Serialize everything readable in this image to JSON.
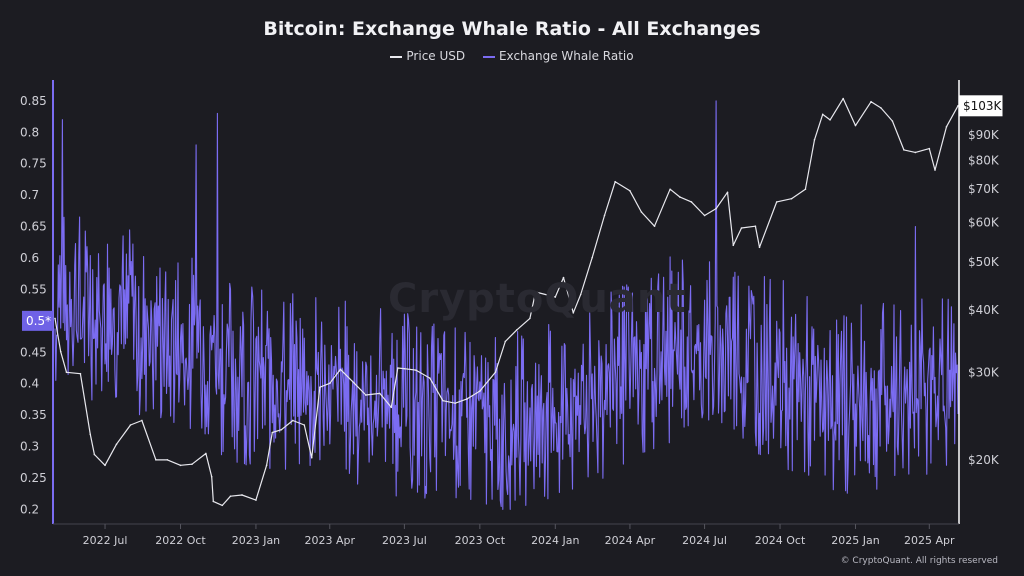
{
  "chart_data": {
    "type": "line",
    "title": "Bitcoin: Exchange Whale Ratio - All Exchanges",
    "legend_position": "top-center",
    "grid": false,
    "x_tick_labels": [
      "2022 Jul",
      "2022 Oct",
      "2023 Jan",
      "2023 Apr",
      "2023 Jul",
      "2023 Oct",
      "2024 Jan",
      "2024 Apr",
      "2024 Jul",
      "2024 Oct",
      "2025 Jan",
      "2025 Apr"
    ],
    "x_range": [
      "2022-05-01",
      "2025-05-06"
    ],
    "left_axis": {
      "ticks": [
        "0.85",
        "0.8",
        "0.75",
        "0.7",
        "0.65",
        "0.6",
        "0.55",
        "0.45",
        "0.4",
        "0.35",
        "0.3",
        "0.25",
        "0.2"
      ],
      "ylim": [
        0.18,
        0.88
      ],
      "current_marker": "0.5*",
      "current_value": 0.5
    },
    "right_axis": {
      "scale": "log",
      "ticks": [
        "$90K",
        "$80K",
        "$70K",
        "$60K",
        "$50K",
        "$40K",
        "$30K",
        "$20K"
      ],
      "tick_values": [
        90000,
        80000,
        70000,
        60000,
        50000,
        40000,
        30000,
        20000
      ],
      "ylim": [
        15000,
        115000
      ],
      "current_marker": "$103K",
      "current_value": 103000
    },
    "series": [
      {
        "name": "Price USD",
        "color": "#e8e8ee",
        "axis": "right",
        "x": [
          "2022-05-01",
          "2022-05-08",
          "2022-05-15",
          "2022-06-01",
          "2022-06-13",
          "2022-06-18",
          "2022-07-01",
          "2022-07-15",
          "2022-08-01",
          "2022-08-15",
          "2022-09-01",
          "2022-09-15",
          "2022-10-01",
          "2022-10-15",
          "2022-11-01",
          "2022-11-08",
          "2022-11-10",
          "2022-11-21",
          "2022-12-01",
          "2022-12-15",
          "2023-01-01",
          "2023-01-14",
          "2023-01-21",
          "2023-02-01",
          "2023-02-15",
          "2023-03-01",
          "2023-03-10",
          "2023-03-20",
          "2023-04-01",
          "2023-04-14",
          "2023-05-01",
          "2023-05-15",
          "2023-06-01",
          "2023-06-15",
          "2023-06-23",
          "2023-07-01",
          "2023-07-15",
          "2023-08-01",
          "2023-08-17",
          "2023-09-01",
          "2023-09-15",
          "2023-10-01",
          "2023-10-20",
          "2023-11-01",
          "2023-11-15",
          "2023-12-01",
          "2023-12-08",
          "2024-01-01",
          "2024-01-11",
          "2024-01-23",
          "2024-02-01",
          "2024-02-15",
          "2024-03-01",
          "2024-03-14",
          "2024-04-01",
          "2024-04-15",
          "2024-05-01",
          "2024-05-20",
          "2024-06-01",
          "2024-06-15",
          "2024-07-01",
          "2024-07-15",
          "2024-07-29",
          "2024-08-05",
          "2024-08-15",
          "2024-09-01",
          "2024-09-06",
          "2024-09-27",
          "2024-10-15",
          "2024-11-01",
          "2024-11-12",
          "2024-11-22",
          "2024-12-01",
          "2024-12-17",
          "2025-01-01",
          "2025-01-20",
          "2025-02-01",
          "2025-02-15",
          "2025-03-01",
          "2025-03-15",
          "2025-04-01",
          "2025-04-08",
          "2025-04-22",
          "2025-05-06"
        ],
        "values": [
          38500,
          33000,
          30000,
          29800,
          22500,
          20500,
          19500,
          21500,
          23500,
          24000,
          20000,
          20000,
          19500,
          19600,
          20600,
          18500,
          16500,
          16200,
          16900,
          17000,
          16600,
          19500,
          22700,
          23000,
          24000,
          23500,
          20200,
          28000,
          28500,
          30400,
          28500,
          27000,
          27200,
          25500,
          30600,
          30500,
          30300,
          29200,
          26300,
          26000,
          26500,
          27500,
          30000,
          34600,
          36500,
          38500,
          43500,
          42500,
          46500,
          39500,
          43000,
          51000,
          62000,
          72500,
          69500,
          63000,
          59000,
          70000,
          67500,
          66000,
          62000,
          64000,
          69000,
          54000,
          58500,
          59000,
          53500,
          66000,
          67000,
          70000,
          88000,
          99000,
          96500,
          106500,
          94000,
          105000,
          102000,
          96000,
          84000,
          83000,
          84500,
          76500,
          93500,
          103000
        ]
      },
      {
        "name": "Exchange Whale Ratio",
        "color": "#7b6cf2",
        "axis": "left",
        "x_range": [
          "2022-05-01",
          "2025-05-06"
        ],
        "trend_x": [
          "2022-05-01",
          "2022-07-01",
          "2022-09-01",
          "2022-11-01",
          "2022-12-15",
          "2023-02-01",
          "2023-04-01",
          "2023-06-01",
          "2023-08-01",
          "2023-10-01",
          "2023-12-01",
          "2024-02-01",
          "2024-04-01",
          "2024-06-01",
          "2024-08-01",
          "2024-10-01",
          "2024-12-01",
          "2025-02-01",
          "2025-04-01",
          "2025-05-06"
        ],
        "trend_values": [
          0.53,
          0.52,
          0.48,
          0.45,
          0.42,
          0.4,
          0.39,
          0.38,
          0.35,
          0.34,
          0.34,
          0.36,
          0.42,
          0.46,
          0.46,
          0.42,
          0.37,
          0.38,
          0.4,
          0.39
        ],
        "peaks": [
          {
            "x": "2022-05-10",
            "value": 0.82
          },
          {
            "x": "2022-10-20",
            "value": 0.78
          },
          {
            "x": "2022-11-15",
            "value": 0.83
          },
          {
            "x": "2024-07-15",
            "value": 0.85
          },
          {
            "x": "2025-03-15",
            "value": 0.65
          }
        ]
      }
    ]
  },
  "watermark": "CryptoQuant",
  "credit": "© CryptoQuant. All rights reserved"
}
